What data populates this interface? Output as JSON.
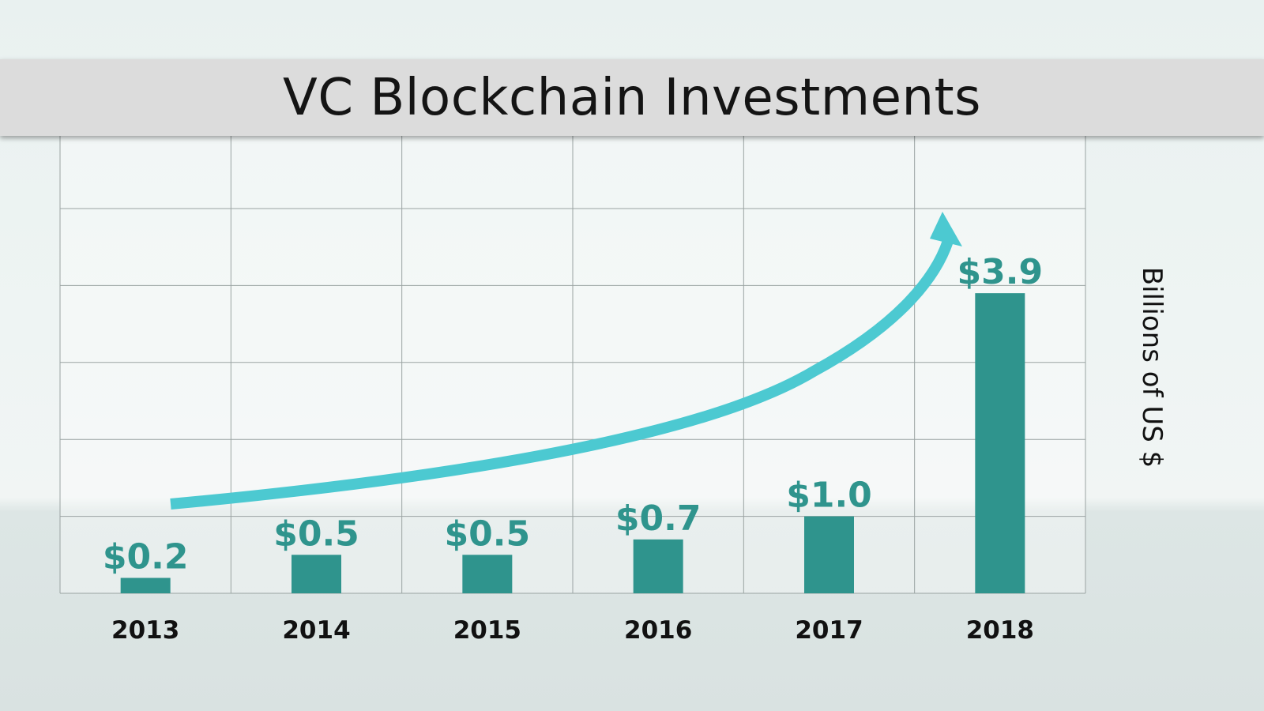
{
  "colors": {
    "bar": "#2f948d",
    "value_label": "#2f948d",
    "arrow": "#4cc9d1",
    "grid": "#9aa3a2",
    "title_bar": "#dcdcdc"
  },
  "chart_data": {
    "type": "bar",
    "title": "VC Blockchain Investments",
    "ylabel": "Billions of US $",
    "xlabel": "",
    "categories": [
      "2013",
      "2014",
      "2015",
      "2016",
      "2017",
      "2018"
    ],
    "values": [
      0.2,
      0.5,
      0.5,
      0.7,
      1.0,
      3.9
    ],
    "data_labels": [
      "$0.2",
      "$0.5",
      "$0.5",
      "$0.7",
      "$1.0",
      "$3.9"
    ],
    "ylim": [
      0,
      5
    ],
    "grid": true,
    "annotations": [
      "upward-trend-arrow"
    ]
  }
}
